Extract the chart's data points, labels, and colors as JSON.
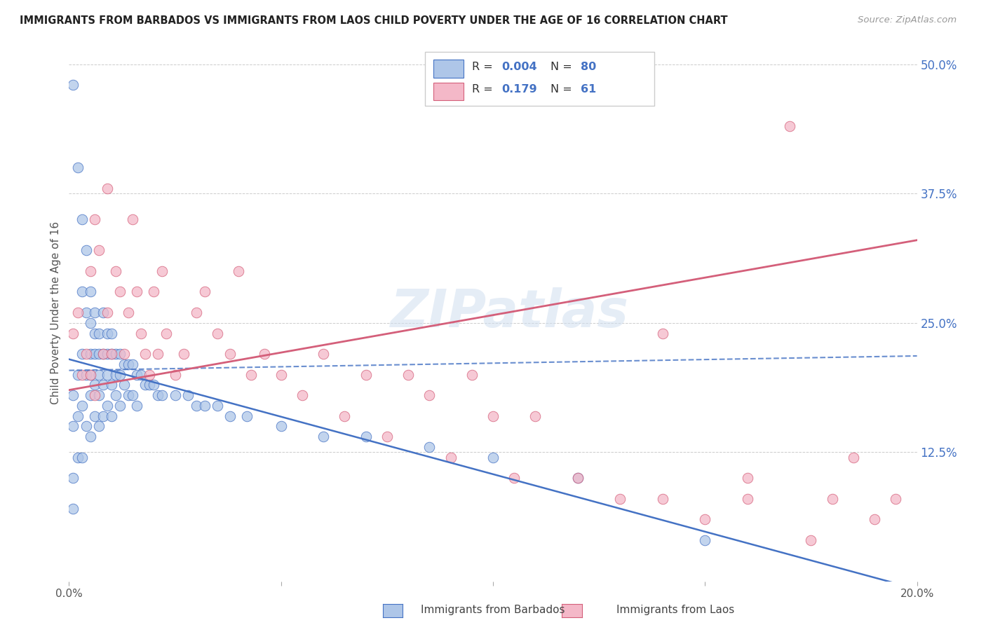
{
  "title": "IMMIGRANTS FROM BARBADOS VS IMMIGRANTS FROM LAOS CHILD POVERTY UNDER THE AGE OF 16 CORRELATION CHART",
  "source": "Source: ZipAtlas.com",
  "ylabel": "Child Poverty Under the Age of 16",
  "x_min": 0.0,
  "x_max": 0.2,
  "y_min": 0.0,
  "y_max": 0.52,
  "x_ticks": [
    0.0,
    0.05,
    0.1,
    0.15,
    0.2
  ],
  "x_tick_labels": [
    "0.0%",
    "",
    "",
    "",
    "20.0%"
  ],
  "y_ticks": [
    0.0,
    0.125,
    0.25,
    0.375,
    0.5
  ],
  "y_tick_labels_right": [
    "",
    "12.5%",
    "25.0%",
    "37.5%",
    "50.0%"
  ],
  "barbados_color": "#aec6e8",
  "laos_color": "#f4b8c8",
  "barbados_R": 0.004,
  "barbados_N": 80,
  "laos_R": 0.179,
  "laos_N": 61,
  "trend_blue": "#4472c4",
  "trend_pink": "#d45f7a",
  "watermark": "ZIPatlas",
  "barbados_x": [
    0.001,
    0.001,
    0.001,
    0.001,
    0.001,
    0.002,
    0.002,
    0.002,
    0.002,
    0.003,
    0.003,
    0.003,
    0.003,
    0.003,
    0.004,
    0.004,
    0.004,
    0.004,
    0.005,
    0.005,
    0.005,
    0.005,
    0.005,
    0.005,
    0.006,
    0.006,
    0.006,
    0.006,
    0.006,
    0.007,
    0.007,
    0.007,
    0.007,
    0.007,
    0.008,
    0.008,
    0.008,
    0.008,
    0.009,
    0.009,
    0.009,
    0.009,
    0.01,
    0.01,
    0.01,
    0.01,
    0.011,
    0.011,
    0.011,
    0.012,
    0.012,
    0.012,
    0.013,
    0.013,
    0.014,
    0.014,
    0.015,
    0.015,
    0.016,
    0.016,
    0.017,
    0.018,
    0.019,
    0.02,
    0.021,
    0.022,
    0.025,
    0.028,
    0.03,
    0.032,
    0.035,
    0.038,
    0.042,
    0.05,
    0.06,
    0.07,
    0.085,
    0.1,
    0.12,
    0.15
  ],
  "barbados_y": [
    0.48,
    0.18,
    0.15,
    0.1,
    0.07,
    0.4,
    0.2,
    0.16,
    0.12,
    0.35,
    0.28,
    0.22,
    0.17,
    0.12,
    0.32,
    0.26,
    0.2,
    0.15,
    0.28,
    0.25,
    0.22,
    0.2,
    0.18,
    0.14,
    0.26,
    0.24,
    0.22,
    0.19,
    0.16,
    0.24,
    0.22,
    0.2,
    0.18,
    0.15,
    0.26,
    0.22,
    0.19,
    0.16,
    0.24,
    0.22,
    0.2,
    0.17,
    0.24,
    0.22,
    0.19,
    0.16,
    0.22,
    0.2,
    0.18,
    0.22,
    0.2,
    0.17,
    0.21,
    0.19,
    0.21,
    0.18,
    0.21,
    0.18,
    0.2,
    0.17,
    0.2,
    0.19,
    0.19,
    0.19,
    0.18,
    0.18,
    0.18,
    0.18,
    0.17,
    0.17,
    0.17,
    0.16,
    0.16,
    0.15,
    0.14,
    0.14,
    0.13,
    0.12,
    0.1,
    0.04
  ],
  "laos_x": [
    0.001,
    0.002,
    0.003,
    0.004,
    0.005,
    0.005,
    0.006,
    0.006,
    0.007,
    0.008,
    0.009,
    0.009,
    0.01,
    0.011,
    0.012,
    0.013,
    0.014,
    0.015,
    0.016,
    0.017,
    0.018,
    0.019,
    0.02,
    0.021,
    0.022,
    0.023,
    0.025,
    0.027,
    0.03,
    0.032,
    0.035,
    0.038,
    0.04,
    0.043,
    0.046,
    0.05,
    0.055,
    0.06,
    0.065,
    0.07,
    0.075,
    0.08,
    0.085,
    0.09,
    0.095,
    0.1,
    0.105,
    0.11,
    0.12,
    0.13,
    0.14,
    0.15,
    0.16,
    0.17,
    0.18,
    0.185,
    0.19,
    0.195,
    0.14,
    0.16,
    0.175
  ],
  "laos_y": [
    0.24,
    0.26,
    0.2,
    0.22,
    0.3,
    0.2,
    0.35,
    0.18,
    0.32,
    0.22,
    0.26,
    0.38,
    0.22,
    0.3,
    0.28,
    0.22,
    0.26,
    0.35,
    0.28,
    0.24,
    0.22,
    0.2,
    0.28,
    0.22,
    0.3,
    0.24,
    0.2,
    0.22,
    0.26,
    0.28,
    0.24,
    0.22,
    0.3,
    0.2,
    0.22,
    0.2,
    0.18,
    0.22,
    0.16,
    0.2,
    0.14,
    0.2,
    0.18,
    0.12,
    0.2,
    0.16,
    0.1,
    0.16,
    0.1,
    0.08,
    0.08,
    0.06,
    0.1,
    0.44,
    0.08,
    0.12,
    0.06,
    0.08,
    0.24,
    0.08,
    0.04
  ],
  "barbados_trend_intercept": 0.2,
  "barbados_trend_slope": 0.005,
  "laos_trend_intercept": 0.185,
  "laos_trend_slope": 0.8,
  "blue_dash_intercept": 0.205,
  "blue_dash_slope": 0.1
}
